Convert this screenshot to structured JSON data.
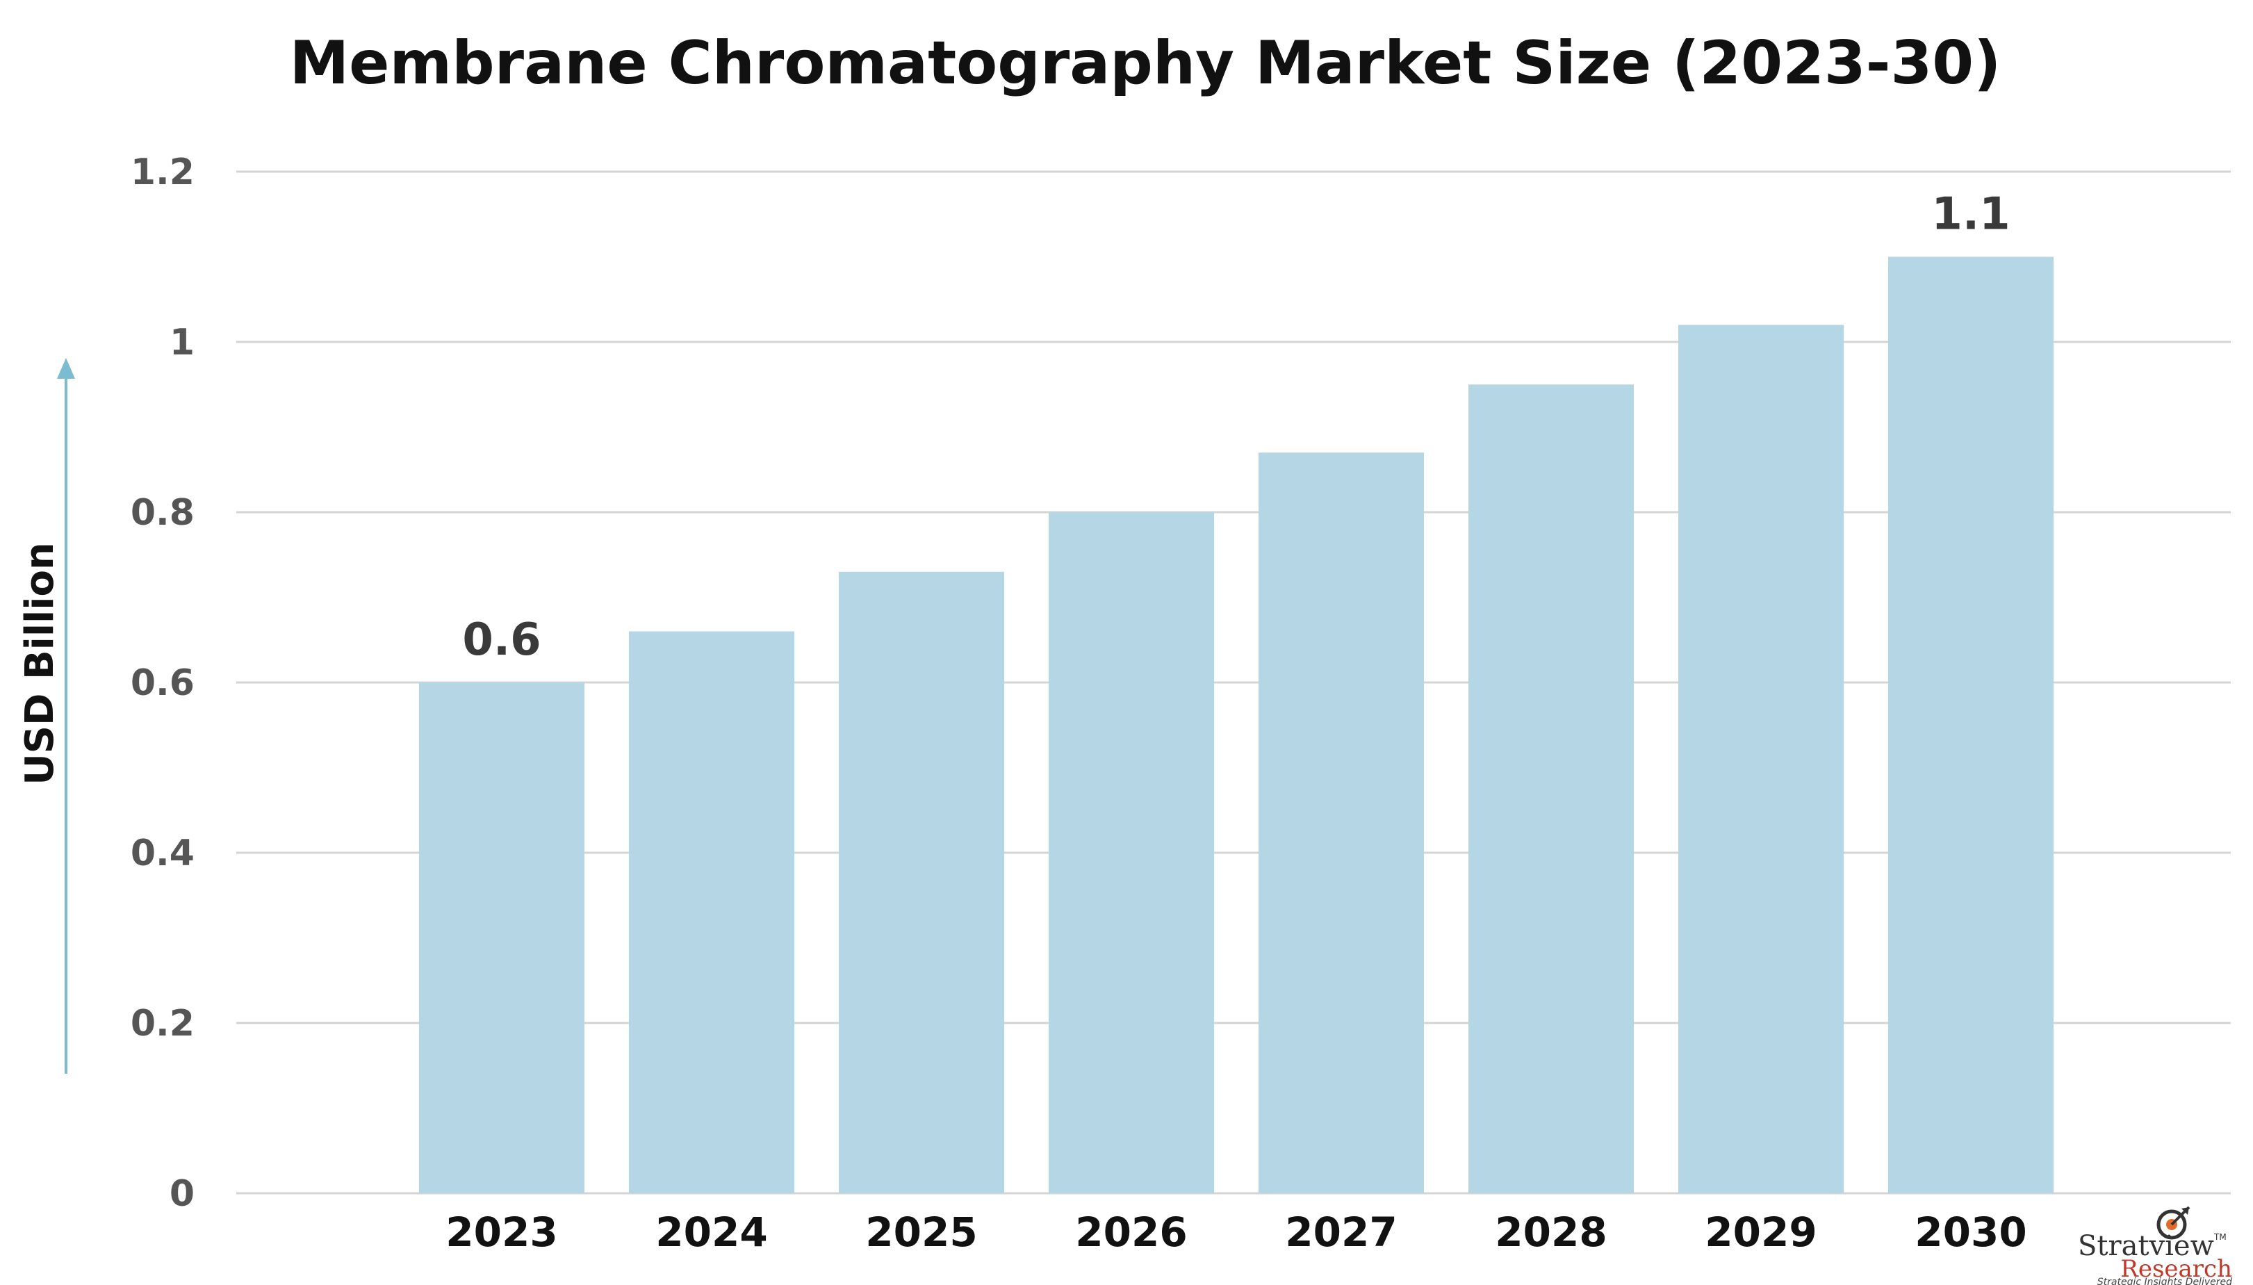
{
  "chart_data": {
    "type": "bar",
    "title": "Membrane Chromatography Market Size (2023-30)",
    "ylabel": "USD Billion",
    "xlabel": "",
    "categories": [
      "2023",
      "2024",
      "2025",
      "2026",
      "2027",
      "2028",
      "2029",
      "2030"
    ],
    "values": [
      0.6,
      0.66,
      0.73,
      0.8,
      0.87,
      0.95,
      1.02,
      1.1
    ],
    "data_labels": [
      {
        "category": "2023",
        "text": "0.6"
      },
      {
        "category": "2030",
        "text": "1.1"
      }
    ],
    "ylim": [
      0,
      1.2
    ],
    "yticks": [
      {
        "value": 0,
        "label": "0"
      },
      {
        "value": 0.2,
        "label": "0.2"
      },
      {
        "value": 0.4,
        "label": "0.4"
      },
      {
        "value": 0.6,
        "label": "0.6"
      },
      {
        "value": 0.8,
        "label": "0.8"
      },
      {
        "value": 1.0,
        "label": "1"
      },
      {
        "value": 1.2,
        "label": "1.2"
      }
    ],
    "grid": true,
    "legend": "none",
    "colors": {
      "bar": "#b5d6e4",
      "grid": "#d4d4d4",
      "arrow": "#7bbcd0"
    }
  },
  "logo": {
    "name": "Stratview",
    "trademark": "TM",
    "sub": "Research",
    "tagline": "Strategic Insights Delivered",
    "icon": "target-icon"
  }
}
